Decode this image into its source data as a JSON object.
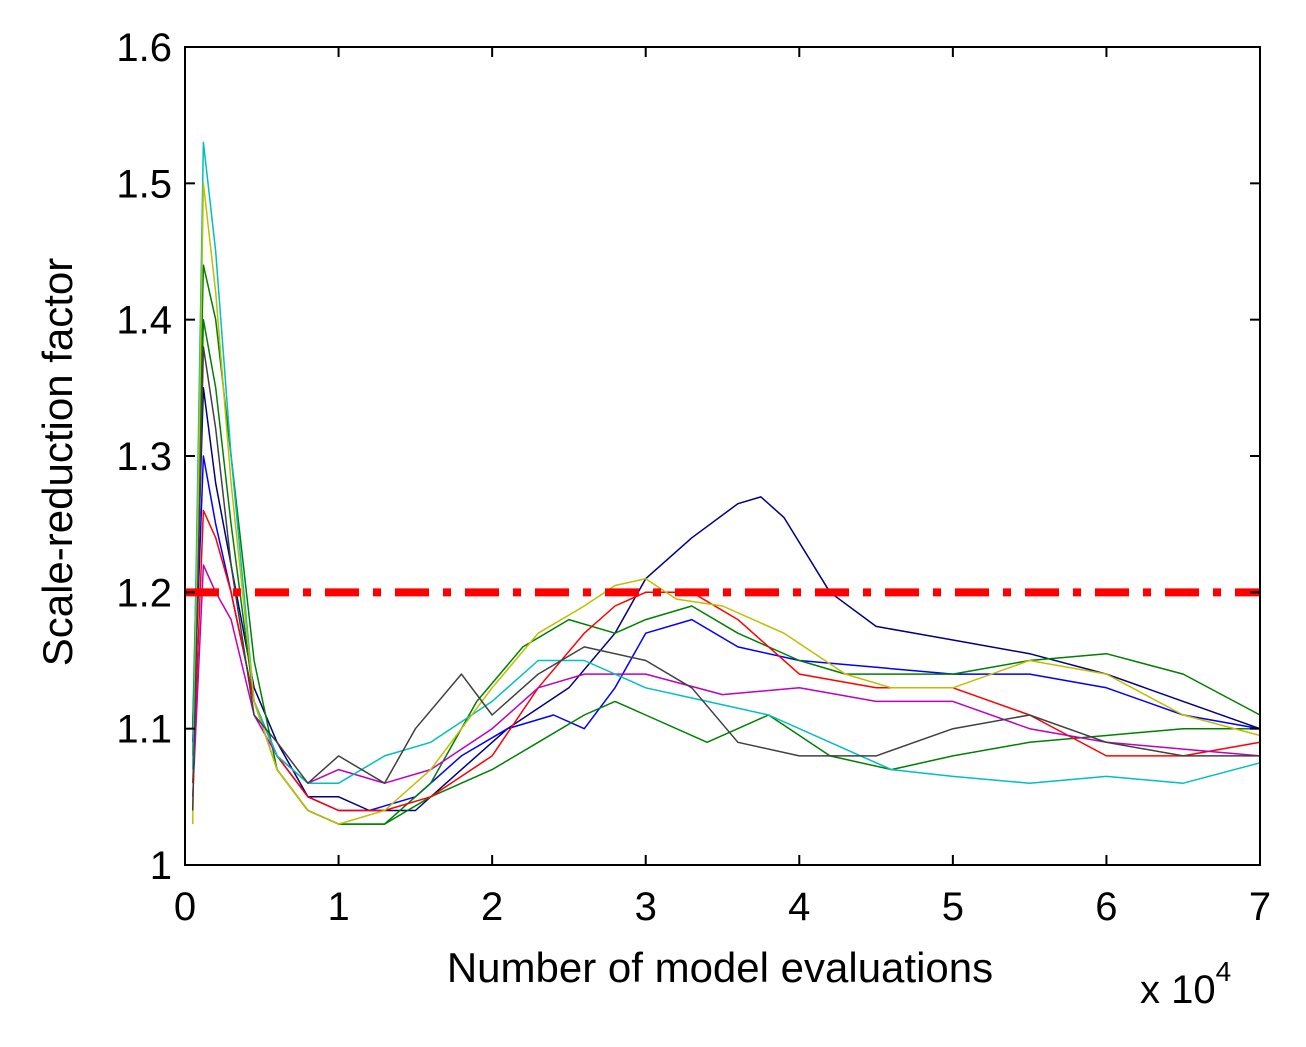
{
  "chart_data": {
    "type": "line",
    "title": "",
    "xlabel": "Number of model evaluations",
    "ylabel": "Scale-reduction factor",
    "x_exponent": {
      "prefix": "x 10",
      "power": "4"
    },
    "xlim": [
      0,
      7
    ],
    "ylim": [
      1,
      1.6
    ],
    "xticks": [
      0,
      1,
      2,
      3,
      4,
      5,
      6,
      7
    ],
    "xtick_labels": [
      "0",
      "1",
      "2",
      "3",
      "4",
      "5",
      "6",
      "7"
    ],
    "yticks": [
      1,
      1.1,
      1.2,
      1.3,
      1.4,
      1.5,
      1.6
    ],
    "ytick_labels": [
      "1",
      "1.1",
      "1.2",
      "1.3",
      "1.4",
      "1.5",
      "1.6"
    ],
    "grid": false,
    "threshold": {
      "value": 1.2,
      "color": "#ff0000",
      "style": "dash-dot"
    },
    "series": [
      {
        "name": "navy",
        "color": "#00007f",
        "x": [
          0.05,
          0.12,
          0.2,
          0.3,
          0.45,
          0.6,
          0.8,
          1.0,
          1.2,
          1.5,
          1.8,
          2.1,
          2.5,
          2.8,
          3.0,
          3.3,
          3.6,
          3.75,
          3.9,
          4.2,
          4.5,
          5.0,
          5.5,
          6.0,
          6.5,
          7.0
        ],
        "y": [
          1.1,
          1.35,
          1.28,
          1.22,
          1.13,
          1.09,
          1.05,
          1.05,
          1.04,
          1.04,
          1.07,
          1.1,
          1.13,
          1.17,
          1.21,
          1.24,
          1.265,
          1.27,
          1.255,
          1.2,
          1.175,
          1.165,
          1.155,
          1.14,
          1.12,
          1.1
        ]
      },
      {
        "name": "blue",
        "color": "#0000ff",
        "x": [
          0.05,
          0.12,
          0.2,
          0.3,
          0.45,
          0.6,
          0.8,
          1.0,
          1.2,
          1.5,
          1.8,
          2.1,
          2.4,
          2.6,
          2.8,
          3.0,
          3.3,
          3.6,
          4.0,
          4.5,
          5.0,
          5.5,
          6.0,
          6.5,
          7.0
        ],
        "y": [
          1.09,
          1.3,
          1.25,
          1.2,
          1.12,
          1.08,
          1.05,
          1.04,
          1.04,
          1.05,
          1.08,
          1.1,
          1.11,
          1.1,
          1.13,
          1.17,
          1.18,
          1.16,
          1.15,
          1.145,
          1.14,
          1.14,
          1.13,
          1.11,
          1.1
        ]
      },
      {
        "name": "green",
        "color": "#007f00",
        "x": [
          0.05,
          0.12,
          0.2,
          0.3,
          0.45,
          0.6,
          0.8,
          1.0,
          1.3,
          1.6,
          1.9,
          2.2,
          2.5,
          2.8,
          3.0,
          3.3,
          3.6,
          4.0,
          4.3,
          5.0,
          5.5,
          6.0,
          6.5,
          7.0
        ],
        "y": [
          1.1,
          1.44,
          1.4,
          1.3,
          1.15,
          1.07,
          1.04,
          1.03,
          1.03,
          1.06,
          1.12,
          1.16,
          1.18,
          1.17,
          1.18,
          1.19,
          1.17,
          1.15,
          1.14,
          1.14,
          1.15,
          1.155,
          1.14,
          1.11
        ]
      },
      {
        "name": "dark-green",
        "color": "#008000",
        "x": [
          0.05,
          0.12,
          0.2,
          0.3,
          0.45,
          0.6,
          0.8,
          1.0,
          1.3,
          1.6,
          2.0,
          2.3,
          2.6,
          2.8,
          3.0,
          3.4,
          3.8,
          4.2,
          4.6,
          5.0,
          5.5,
          6.0,
          6.5,
          7.0
        ],
        "y": [
          1.08,
          1.4,
          1.35,
          1.25,
          1.12,
          1.07,
          1.04,
          1.03,
          1.03,
          1.05,
          1.07,
          1.09,
          1.11,
          1.12,
          1.11,
          1.09,
          1.11,
          1.08,
          1.07,
          1.08,
          1.09,
          1.095,
          1.1,
          1.1
        ]
      },
      {
        "name": "red",
        "color": "#ff0000",
        "x": [
          0.05,
          0.12,
          0.2,
          0.3,
          0.45,
          0.6,
          0.8,
          1.0,
          1.3,
          1.6,
          2.0,
          2.3,
          2.6,
          2.8,
          3.0,
          3.3,
          3.6,
          4.0,
          4.5,
          5.0,
          5.5,
          6.0,
          6.5,
          7.0
        ],
        "y": [
          1.06,
          1.26,
          1.24,
          1.2,
          1.12,
          1.08,
          1.05,
          1.04,
          1.04,
          1.05,
          1.08,
          1.13,
          1.17,
          1.19,
          1.2,
          1.2,
          1.18,
          1.14,
          1.13,
          1.13,
          1.11,
          1.08,
          1.08,
          1.09
        ]
      },
      {
        "name": "magenta",
        "color": "#bf00bf",
        "x": [
          0.05,
          0.12,
          0.2,
          0.3,
          0.45,
          0.6,
          0.8,
          1.0,
          1.3,
          1.6,
          2.0,
          2.3,
          2.6,
          3.0,
          3.5,
          4.0,
          4.5,
          5.0,
          5.5,
          6.0,
          6.5,
          7.0
        ],
        "y": [
          1.05,
          1.22,
          1.2,
          1.18,
          1.11,
          1.08,
          1.06,
          1.07,
          1.06,
          1.07,
          1.1,
          1.13,
          1.14,
          1.14,
          1.125,
          1.13,
          1.12,
          1.12,
          1.1,
          1.09,
          1.085,
          1.08
        ]
      },
      {
        "name": "cyan",
        "color": "#00bfbf",
        "x": [
          0.05,
          0.12,
          0.2,
          0.3,
          0.45,
          0.6,
          0.8,
          1.0,
          1.3,
          1.6,
          2.0,
          2.3,
          2.6,
          3.0,
          3.4,
          3.8,
          4.2,
          4.6,
          5.0,
          5.5,
          6.0,
          6.5,
          7.0
        ],
        "y": [
          1.07,
          1.53,
          1.45,
          1.3,
          1.12,
          1.08,
          1.06,
          1.06,
          1.08,
          1.09,
          1.12,
          1.15,
          1.15,
          1.13,
          1.12,
          1.11,
          1.09,
          1.07,
          1.065,
          1.06,
          1.065,
          1.06,
          1.075
        ]
      },
      {
        "name": "olive",
        "color": "#bfbf00",
        "x": [
          0.05,
          0.12,
          0.2,
          0.3,
          0.45,
          0.6,
          0.8,
          1.0,
          1.3,
          1.6,
          2.0,
          2.3,
          2.6,
          2.8,
          3.0,
          3.2,
          3.5,
          3.9,
          4.3,
          4.6,
          5.0,
          5.5,
          6.0,
          6.5,
          7.0
        ],
        "y": [
          1.03,
          1.5,
          1.42,
          1.28,
          1.12,
          1.07,
          1.04,
          1.03,
          1.04,
          1.07,
          1.13,
          1.17,
          1.19,
          1.205,
          1.21,
          1.195,
          1.19,
          1.17,
          1.14,
          1.13,
          1.13,
          1.15,
          1.14,
          1.11,
          1.095
        ]
      },
      {
        "name": "dark-gray",
        "color": "#404040",
        "x": [
          0.05,
          0.12,
          0.2,
          0.3,
          0.45,
          0.6,
          0.8,
          1.0,
          1.3,
          1.5,
          1.8,
          2.0,
          2.3,
          2.6,
          3.0,
          3.3,
          3.6,
          4.0,
          4.5,
          5.0,
          5.5,
          6.0,
          6.5,
          7.0
        ],
        "y": [
          1.04,
          1.38,
          1.32,
          1.22,
          1.11,
          1.09,
          1.06,
          1.08,
          1.06,
          1.1,
          1.14,
          1.11,
          1.14,
          1.16,
          1.15,
          1.13,
          1.09,
          1.08,
          1.08,
          1.1,
          1.11,
          1.09,
          1.08,
          1.08
        ]
      }
    ]
  }
}
